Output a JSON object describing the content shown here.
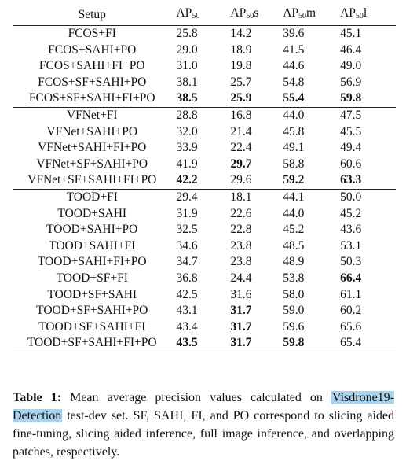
{
  "table": {
    "headers": {
      "setup": "Setup",
      "ap": "AP",
      "sub": "50",
      "ap50": "",
      "ap50s": "s",
      "ap50m": "m",
      "ap50l": "l"
    },
    "groups": [
      {
        "rows": [
          {
            "setup": "FCOS+FI",
            "ap50": "25.8",
            "ap50s": "14.2",
            "ap50m": "39.6",
            "ap50l": "45.1",
            "bold": []
          },
          {
            "setup": "FCOS+SAHI+PO",
            "ap50": "29.0",
            "ap50s": "18.9",
            "ap50m": "41.5",
            "ap50l": "46.4",
            "bold": []
          },
          {
            "setup": "FCOS+SAHI+FI+PO",
            "ap50": "31.0",
            "ap50s": "19.8",
            "ap50m": "44.6",
            "ap50l": "49.0",
            "bold": []
          },
          {
            "setup": "FCOS+SF+SAHI+PO",
            "ap50": "38.1",
            "ap50s": "25.7",
            "ap50m": "54.8",
            "ap50l": "56.9",
            "bold": []
          },
          {
            "setup": "FCOS+SF+SAHI+FI+PO",
            "ap50": "38.5",
            "ap50s": "25.9",
            "ap50m": "55.4",
            "ap50l": "59.8",
            "bold": [
              "ap50",
              "ap50s",
              "ap50m",
              "ap50l"
            ]
          }
        ]
      },
      {
        "rows": [
          {
            "setup": "VFNet+FI",
            "ap50": "28.8",
            "ap50s": "16.8",
            "ap50m": "44.0",
            "ap50l": "47.5",
            "bold": []
          },
          {
            "setup": "VFNet+SAHI+PO",
            "ap50": "32.0",
            "ap50s": "21.4",
            "ap50m": "45.8",
            "ap50l": "45.5",
            "bold": []
          },
          {
            "setup": "VFNet+SAHI+FI+PO",
            "ap50": "33.9",
            "ap50s": "22.4",
            "ap50m": "49.1",
            "ap50l": "49.4",
            "bold": []
          },
          {
            "setup": "VFNet+SF+SAHI+PO",
            "ap50": "41.9",
            "ap50s": "29.7",
            "ap50m": "58.8",
            "ap50l": "60.6",
            "bold": [
              "ap50s"
            ]
          },
          {
            "setup": "VFNet+SF+SAHI+FI+PO",
            "ap50": "42.2",
            "ap50s": "29.6",
            "ap50m": "59.2",
            "ap50l": "63.3",
            "bold": [
              "ap50",
              "ap50m",
              "ap50l"
            ]
          }
        ]
      },
      {
        "rows": [
          {
            "setup": "TOOD+FI",
            "ap50": "29.4",
            "ap50s": "18.1",
            "ap50m": "44.1",
            "ap50l": "50.0",
            "bold": []
          },
          {
            "setup": "TOOD+SAHI",
            "ap50": "31.9",
            "ap50s": "22.6",
            "ap50m": "44.0",
            "ap50l": "45.2",
            "bold": []
          },
          {
            "setup": "TOOD+SAHI+PO",
            "ap50": "32.5",
            "ap50s": "22.8",
            "ap50m": "45.2",
            "ap50l": "43.6",
            "bold": []
          },
          {
            "setup": "TOOD+SAHI+FI",
            "ap50": "34.6",
            "ap50s": "23.8",
            "ap50m": "48.5",
            "ap50l": "53.1",
            "bold": []
          },
          {
            "setup": "TOOD+SAHI+FI+PO",
            "ap50": "34.7",
            "ap50s": "23.8",
            "ap50m": "48.9",
            "ap50l": "50.3",
            "bold": []
          },
          {
            "setup": "TOOD+SF+FI",
            "ap50": "36.8",
            "ap50s": "24.4",
            "ap50m": "53.8",
            "ap50l": "66.4",
            "bold": [
              "ap50l"
            ]
          },
          {
            "setup": "TOOD+SF+SAHI",
            "ap50": "42.5",
            "ap50s": "31.6",
            "ap50m": "58.0",
            "ap50l": "61.1",
            "bold": []
          },
          {
            "setup": "TOOD+SF+SAHI+PO",
            "ap50": "43.1",
            "ap50s": "31.7",
            "ap50m": "59.0",
            "ap50l": "60.2",
            "bold": [
              "ap50s"
            ]
          },
          {
            "setup": "TOOD+SF+SAHI+FI",
            "ap50": "43.4",
            "ap50s": "31.7",
            "ap50m": "59.6",
            "ap50l": "65.6",
            "bold": [
              "ap50s"
            ]
          },
          {
            "setup": "TOOD+SF+SAHI+FI+PO",
            "ap50": "43.5",
            "ap50s": "31.7",
            "ap50m": "59.8",
            "ap50l": "65.4",
            "bold": [
              "ap50",
              "ap50s",
              "ap50m"
            ]
          }
        ]
      }
    ]
  },
  "caption": {
    "label": "Table 1",
    "label_sep": ":",
    "text_before": " Mean average precision values calculated on ",
    "highlighted": "Visdrone19-Detection",
    "text_after": " test-dev set. SF, SAHI, FI, and PO correspond to slicing aided fine-tuning, slicing aided inference, full image inference, and overlapping patches, respectively."
  },
  "colors": {
    "highlight": "#a9d3ec",
    "text": "#111111"
  }
}
